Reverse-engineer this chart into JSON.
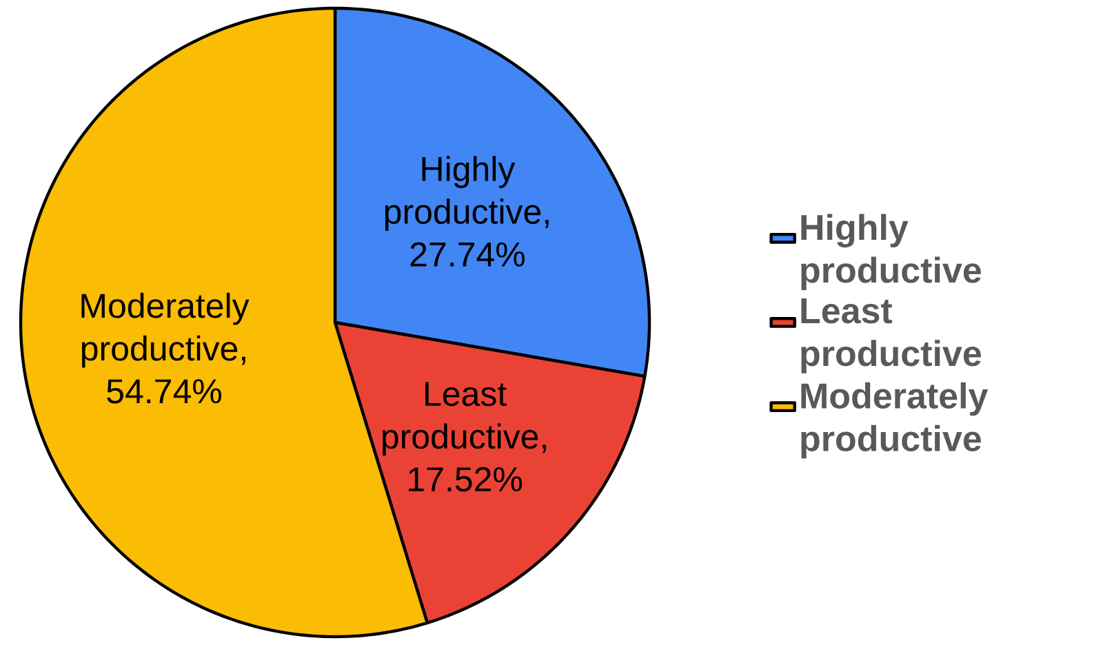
{
  "chart_data": {
    "type": "pie",
    "categories": [
      "Highly productive",
      "Least productive",
      "Moderately productive"
    ],
    "values": [
      27.74,
      17.52,
      54.74
    ],
    "value_labels": [
      "Highly productive, 27.74%",
      "Least productive, 17.52%",
      "Moderately productive, 54.74%"
    ],
    "colors": [
      "#4285f4",
      "#ea4335",
      "#fbbc04"
    ],
    "legend": "right"
  }
}
